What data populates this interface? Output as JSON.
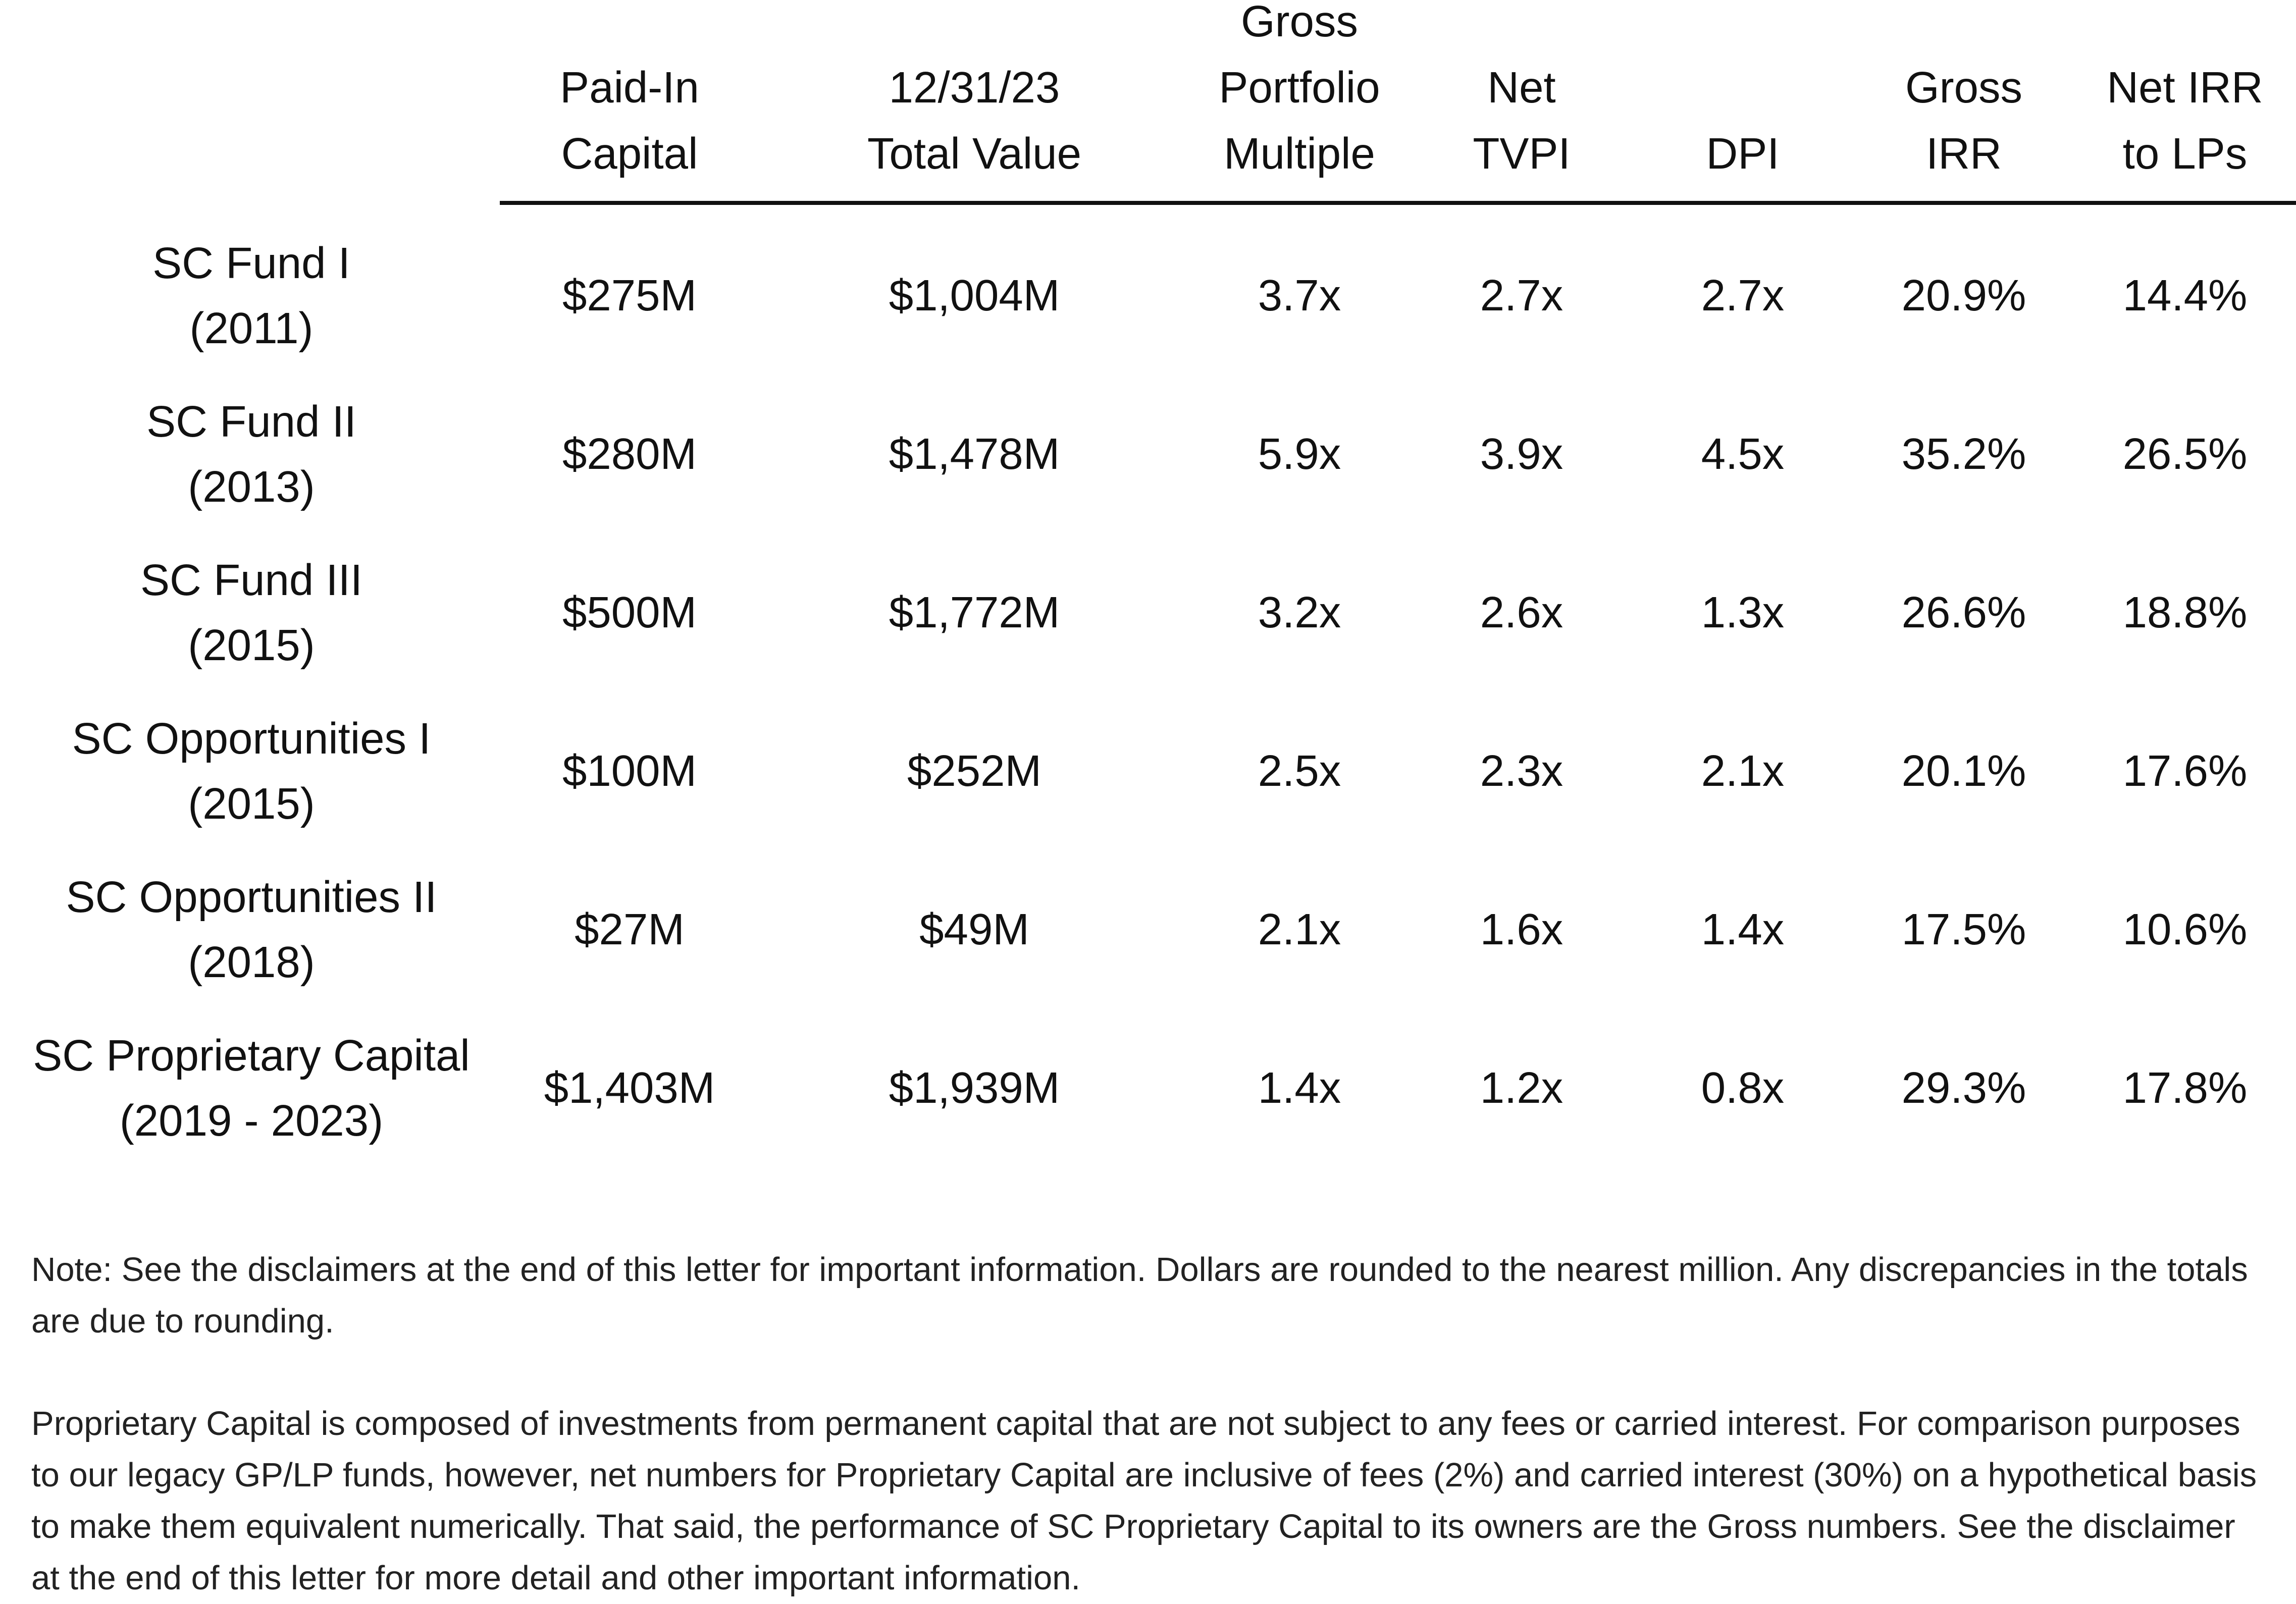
{
  "table": {
    "columns": [
      {
        "key": "paid_in",
        "lines": [
          "Paid-In",
          "Capital"
        ]
      },
      {
        "key": "total_value",
        "lines": [
          "12/31/23",
          "Total Value"
        ]
      },
      {
        "key": "gross_multiple",
        "lines": [
          "Gross",
          "Portfolio",
          "Multiple"
        ]
      },
      {
        "key": "net_tvpi",
        "lines": [
          "Net",
          "TVPI"
        ]
      },
      {
        "key": "dpi",
        "lines": [
          "DPI"
        ]
      },
      {
        "key": "gross_irr",
        "lines": [
          "Gross",
          "IRR"
        ]
      },
      {
        "key": "net_irr",
        "lines": [
          "Net IRR",
          "to LPs"
        ]
      }
    ],
    "rows": [
      {
        "name": "SC Fund I",
        "years": "(2011)",
        "values": [
          "$275M",
          "$1,004M",
          "3.7x",
          "2.7x",
          "2.7x",
          "20.9%",
          "14.4%"
        ]
      },
      {
        "name": "SC Fund II",
        "years": "(2013)",
        "values": [
          "$280M",
          "$1,478M",
          "5.9x",
          "3.9x",
          "4.5x",
          "35.2%",
          "26.5%"
        ]
      },
      {
        "name": "SC Fund III",
        "years": "(2015)",
        "values": [
          "$500M",
          "$1,772M",
          "3.2x",
          "2.6x",
          "1.3x",
          "26.6%",
          "18.8%"
        ]
      },
      {
        "name": "SC Opportunities I",
        "years": "(2015)",
        "values": [
          "$100M",
          "$252M",
          "2.5x",
          "2.3x",
          "2.1x",
          "20.1%",
          "17.6%"
        ]
      },
      {
        "name": "SC Opportunities II",
        "years": "(2018)",
        "values": [
          "$27M",
          "$49M",
          "2.1x",
          "1.6x",
          "1.4x",
          "17.5%",
          "10.6%"
        ]
      },
      {
        "name": "SC Proprietary Capital",
        "years": "(2019 - 2023)",
        "values": [
          "$1,403M",
          "$1,939M",
          "1.4x",
          "1.2x",
          "0.8x",
          "29.3%",
          "17.8%"
        ]
      }
    ]
  },
  "notes": {
    "note": "Note: See the disclaimers at the end of this letter for important information. Dollars are rounded to the nearest million. Any discrepancies in the totals are due to rounding.",
    "proprietary": "Proprietary Capital is composed of investments from permanent capital that are not subject to any fees or carried interest. For comparison purposes to our legacy GP/LP funds, however, net numbers for Proprietary Capital are inclusive of fees (2%) and carried interest (30%) on a hypothetical basis to make them equivalent numerically.  That said, the performance of SC Proprietary Capital to its owners are the Gross numbers. See the disclaimer at the end of this letter for more detail and other important information."
  }
}
